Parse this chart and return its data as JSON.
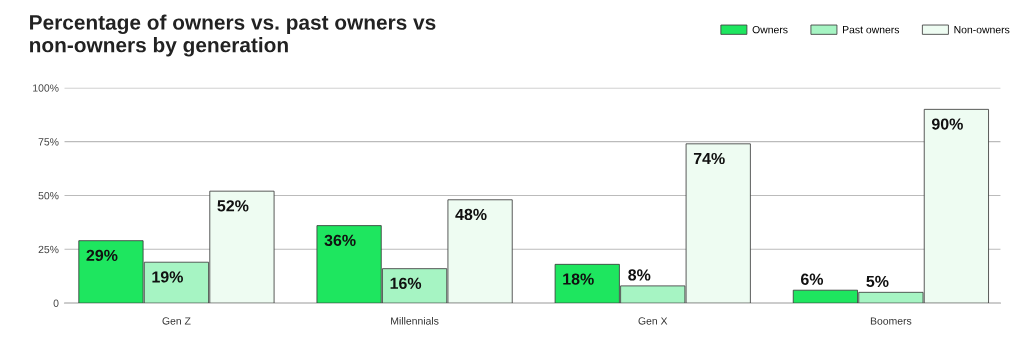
{
  "chart_data": {
    "type": "bar",
    "title": "Percentage of owners vs. past owners vs\nnon-owners by generation",
    "categories": [
      "Gen Z",
      "Millennials",
      "Gen X",
      "Boomers"
    ],
    "series": [
      {
        "name": "Owners",
        "color": "#1ee65f",
        "values": [
          29,
          36,
          18,
          6
        ],
        "value_labels": [
          "29%",
          "36%",
          "18%",
          "6%"
        ]
      },
      {
        "name": "Past owners",
        "color": "#a6f4c3",
        "values": [
          19,
          16,
          8,
          5
        ],
        "value_labels": [
          "19%",
          "16%",
          "8%",
          "5%"
        ]
      },
      {
        "name": "Non-owners",
        "color": "#eefcf2",
        "values": [
          52,
          48,
          74,
          90
        ],
        "value_labels": [
          "52%",
          "48%",
          "74%",
          "90%"
        ]
      }
    ],
    "ylim": [
      0,
      100
    ],
    "yticks": [
      {
        "value": 0,
        "label": "0"
      },
      {
        "value": 25,
        "label": "25%"
      },
      {
        "value": 50,
        "label": "50%"
      },
      {
        "value": 75,
        "label": "75%"
      },
      {
        "value": 100,
        "label": "100%"
      }
    ],
    "grid": "y",
    "legend": "top right"
  }
}
